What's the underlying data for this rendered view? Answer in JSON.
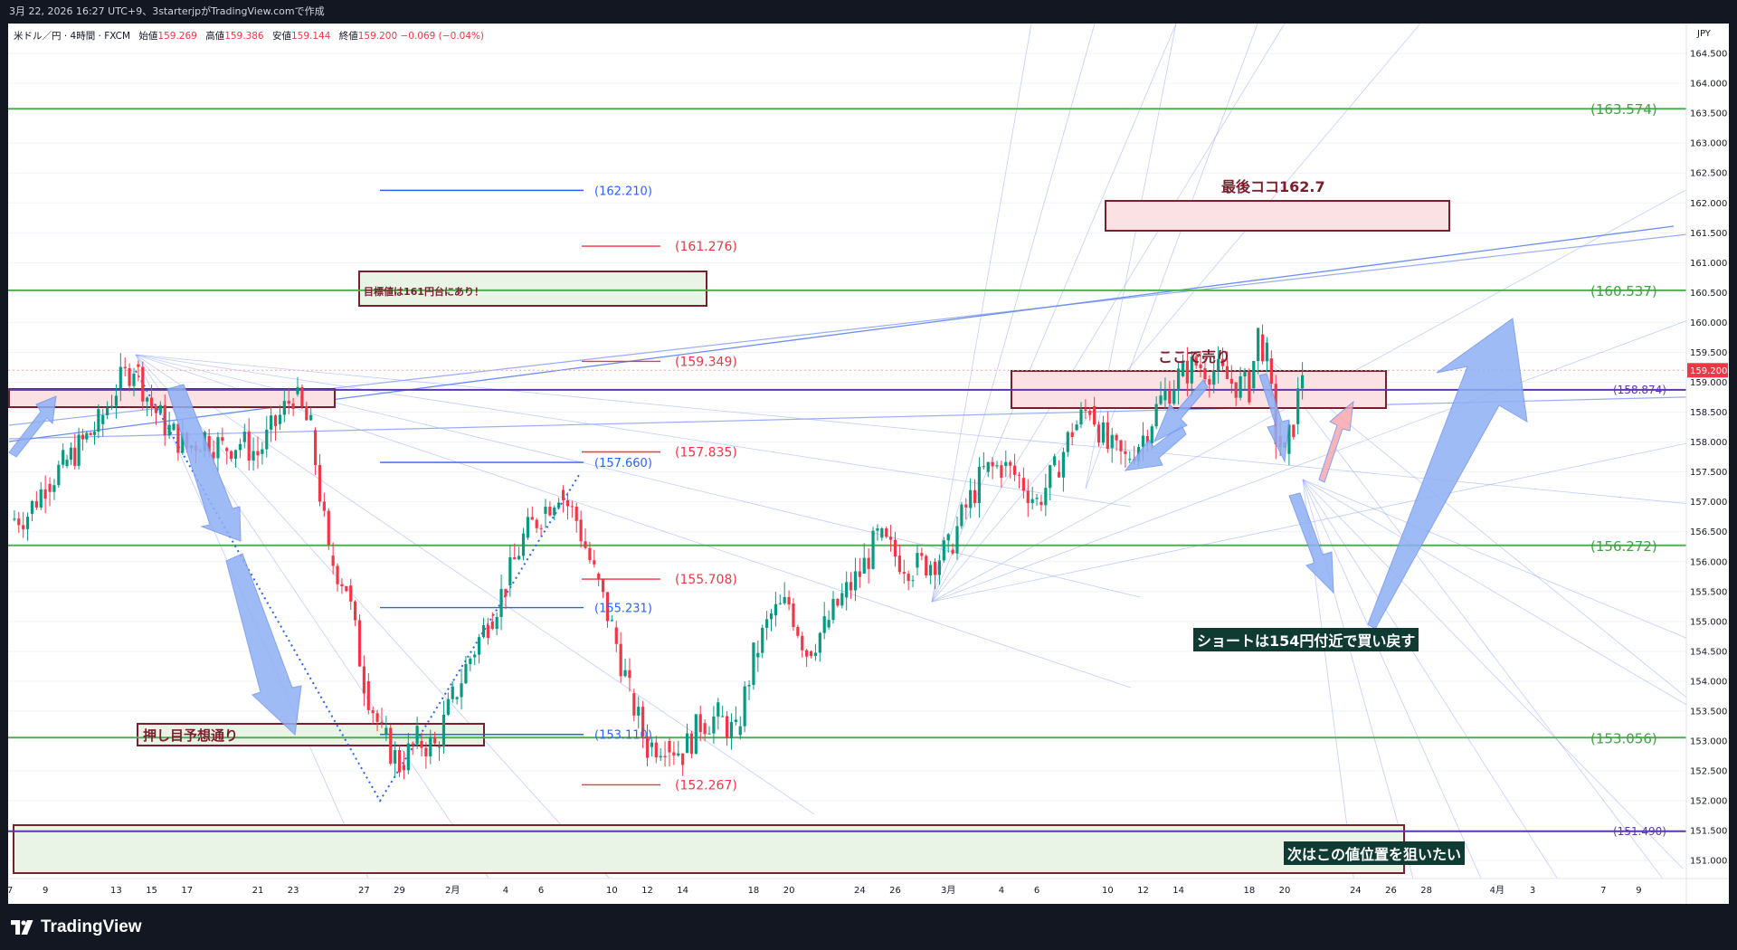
{
  "header": {
    "caption": "3月 22, 2026 16:27 UTC+9、3starterjpがTradingView.comで作成"
  },
  "legend": {
    "symbol": "米ドル／円 · 4時間 · FXCM",
    "open_label": "始値",
    "open": "159.269",
    "high_label": "高値",
    "high": "159.386",
    "low_label": "安値",
    "low": "159.144",
    "close_label": "終値",
    "close": "159.200",
    "change": "−0.069 (−0.04%)"
  },
  "footer": {
    "brand": "TradingView"
  },
  "colors": {
    "up": "#089981",
    "down": "#f23645",
    "green_line": "#4caf50",
    "purple_line": "#5e35b1",
    "blue_line": "#2962ff",
    "fan": "#90a4f8",
    "arrow": "#8fb0f5",
    "box_border": "#7b1f2e",
    "pink_fill": "#fbe1e4",
    "green_fill": "#e9f4e6",
    "price_tag": "#f23645",
    "note_bg": "#0f3b33"
  },
  "chart_data": {
    "type": "candlestick",
    "symbol": "米ドル／円",
    "timeframe": "4時間",
    "currency": "JPY",
    "y_range": [
      150.7,
      165.0
    ],
    "y_ticks": [
      "151.000",
      "151.500",
      "152.000",
      "152.500",
      "153.000",
      "153.500",
      "154.000",
      "154.500",
      "155.000",
      "155.500",
      "156.000",
      "156.500",
      "157.000",
      "157.500",
      "158.000",
      "158.500",
      "159.000",
      "159.500",
      "160.000",
      "160.500",
      "161.000",
      "161.500",
      "162.000",
      "162.500",
      "163.000",
      "163.500",
      "164.000",
      "164.500"
    ],
    "x_ticks": [
      "7",
      "9",
      "13",
      "15",
      "17",
      "21",
      "23",
      "27",
      "29",
      "2月",
      "4",
      "6",
      "10",
      "12",
      "14",
      "18",
      "20",
      "24",
      "26",
      "3月",
      "4",
      "6",
      "10",
      "12",
      "14",
      "18",
      "20",
      "24",
      "26",
      "28",
      "4月",
      "3",
      "7",
      "9"
    ],
    "x_tick_dates": [
      "2026-01-07",
      "2026-01-09",
      "2026-01-13",
      "2026-01-15",
      "2026-01-17",
      "2026-01-21",
      "2026-01-23",
      "2026-01-27",
      "2026-01-29",
      "2026-02-01",
      "2026-02-04",
      "2026-02-06",
      "2026-02-10",
      "2026-02-12",
      "2026-02-14",
      "2026-02-18",
      "2026-02-20",
      "2026-02-24",
      "2026-02-26",
      "2026-03-01",
      "2026-03-04",
      "2026-03-06",
      "2026-03-10",
      "2026-03-12",
      "2026-03-14",
      "2026-03-18",
      "2026-03-20",
      "2026-03-24",
      "2026-03-26",
      "2026-03-28",
      "2026-04-01",
      "2026-04-03",
      "2026-04-07",
      "2026-04-09"
    ],
    "x_range": [
      "2026-01-07",
      "2026-04-10"
    ],
    "current_price": "159.200",
    "close_path": [
      [
        "2026-01-07",
        156.7
      ],
      [
        "2026-01-08",
        156.8
      ],
      [
        "2026-01-09",
        157.3
      ],
      [
        "2026-01-10",
        157.6
      ],
      [
        "2026-01-12",
        158.3
      ],
      [
        "2026-01-13",
        158.9
      ],
      [
        "2026-01-14",
        159.3
      ],
      [
        "2026-01-15",
        158.6
      ],
      [
        "2026-01-16",
        158.2
      ],
      [
        "2026-01-17",
        157.9
      ],
      [
        "2026-01-18",
        158.1
      ],
      [
        "2026-01-19",
        157.9
      ],
      [
        "2026-01-20",
        158.0
      ],
      [
        "2026-01-21",
        157.8
      ],
      [
        "2026-01-22",
        158.3
      ],
      [
        "2026-01-23",
        158.8
      ],
      [
        "2026-01-24",
        158.2
      ],
      [
        "2026-01-25",
        156.1
      ],
      [
        "2026-01-26",
        155.6
      ],
      [
        "2026-01-27",
        154.0
      ],
      [
        "2026-01-28",
        153.1
      ],
      [
        "2026-01-29",
        152.6
      ],
      [
        "2026-01-30",
        153.0
      ],
      [
        "2026-01-31",
        152.9
      ],
      [
        "2026-02-01",
        153.7
      ],
      [
        "2026-02-02",
        154.4
      ],
      [
        "2026-02-03",
        155.0
      ],
      [
        "2026-02-04",
        155.6
      ],
      [
        "2026-02-05",
        156.4
      ],
      [
        "2026-02-06",
        156.8
      ],
      [
        "2026-02-07",
        157.2
      ],
      [
        "2026-02-08",
        156.7
      ],
      [
        "2026-02-09",
        155.8
      ],
      [
        "2026-02-10",
        154.9
      ],
      [
        "2026-02-11",
        153.8
      ],
      [
        "2026-02-12",
        152.9
      ],
      [
        "2026-02-13",
        153.0
      ],
      [
        "2026-02-14",
        152.8
      ],
      [
        "2026-02-15",
        153.3
      ],
      [
        "2026-02-16",
        153.4
      ],
      [
        "2026-02-17",
        153.1
      ],
      [
        "2026-02-18",
        154.4
      ],
      [
        "2026-02-19",
        155.1
      ],
      [
        "2026-02-20",
        155.3
      ],
      [
        "2026-02-21",
        154.5
      ],
      [
        "2026-02-22",
        154.9
      ],
      [
        "2026-02-23",
        155.4
      ],
      [
        "2026-02-24",
        155.8
      ],
      [
        "2026-02-25",
        156.4
      ],
      [
        "2026-02-26",
        156.1
      ],
      [
        "2026-02-27",
        155.9
      ],
      [
        "2026-02-28",
        156.0
      ],
      [
        "2026-03-01",
        156.2
      ],
      [
        "2026-03-02",
        156.9
      ],
      [
        "2026-03-03",
        157.5
      ],
      [
        "2026-03-04",
        157.6
      ],
      [
        "2026-03-05",
        157.4
      ],
      [
        "2026-03-06",
        157.0
      ],
      [
        "2026-03-07",
        157.5
      ],
      [
        "2026-03-08",
        158.2
      ],
      [
        "2026-03-09",
        158.6
      ],
      [
        "2026-03-10",
        157.9
      ],
      [
        "2026-03-11",
        157.7
      ],
      [
        "2026-03-12",
        158.1
      ],
      [
        "2026-03-13",
        158.7
      ],
      [
        "2026-03-14",
        159.1
      ],
      [
        "2026-03-15",
        159.3
      ],
      [
        "2026-03-16",
        159.2
      ],
      [
        "2026-03-17",
        159.0
      ],
      [
        "2026-03-18",
        158.9
      ],
      [
        "2026-03-18T12",
        159.8
      ],
      [
        "2026-03-19",
        159.4
      ],
      [
        "2026-03-19T12",
        158.1
      ],
      [
        "2026-03-20",
        157.8
      ],
      [
        "2026-03-20T12",
        158.3
      ],
      [
        "2026-03-21",
        159.2
      ]
    ]
  },
  "annotations": {
    "green_levels": [
      "(163.574)",
      "(160.537)",
      "(156.272)",
      "(153.056)"
    ],
    "purple_levels": [
      "(158.874)",
      "(151.490)"
    ],
    "blue_levels": [
      "(162.210)",
      "(157.660)",
      "(155.231)",
      "(153.110)"
    ],
    "red_levels": [
      "(161.276)",
      "(159.349)",
      "(157.835)",
      "(155.708)",
      "(152.267)"
    ],
    "last_here": "最後ココ162.7",
    "target_note": "目標値は161円台にあり！",
    "sell_here": "ここで売り",
    "pullback_note": "押し目予想通り",
    "short_note": "ショートは154円付近で買い戻す",
    "next_target_note": "次はこの値位置を狙いたい"
  }
}
